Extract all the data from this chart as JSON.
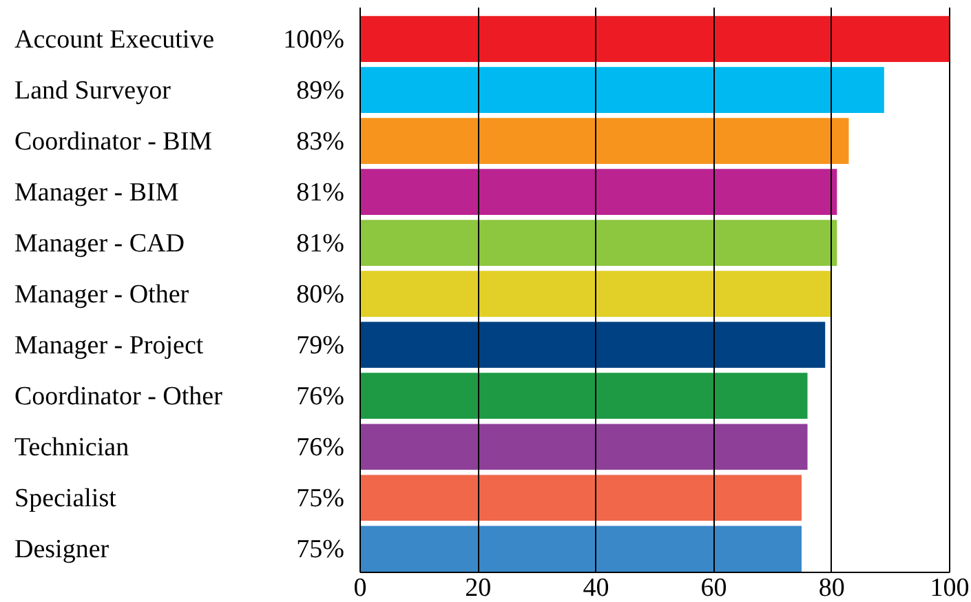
{
  "chart_data": {
    "type": "bar",
    "orientation": "horizontal",
    "categories": [
      "Account Executive",
      "Land Surveyor",
      "Coordinator - BIM",
      "Manager - BIM",
      "Manager - CAD",
      "Manager - Other",
      "Manager - Project",
      "Coordinator - Other",
      "Technician",
      "Specialist",
      "Designer"
    ],
    "values": [
      100,
      89,
      83,
      81,
      81,
      80,
      79,
      76,
      76,
      75,
      75
    ],
    "colors": [
      "#ed1c24",
      "#00b9f1",
      "#f7941d",
      "#bb2390",
      "#8dc63f",
      "#e2cf27",
      "#004183",
      "#1e9a45",
      "#8e3f98",
      "#f0674a",
      "#3a88c8"
    ],
    "value_labels": [
      "100%",
      "89%",
      "83%",
      "81%",
      "81%",
      "80%",
      "79%",
      "76%",
      "76%",
      "75%",
      "75%"
    ],
    "xlim": [
      0,
      100
    ],
    "xticks": [
      0,
      20,
      40,
      60,
      80,
      100
    ],
    "grid": "x"
  }
}
